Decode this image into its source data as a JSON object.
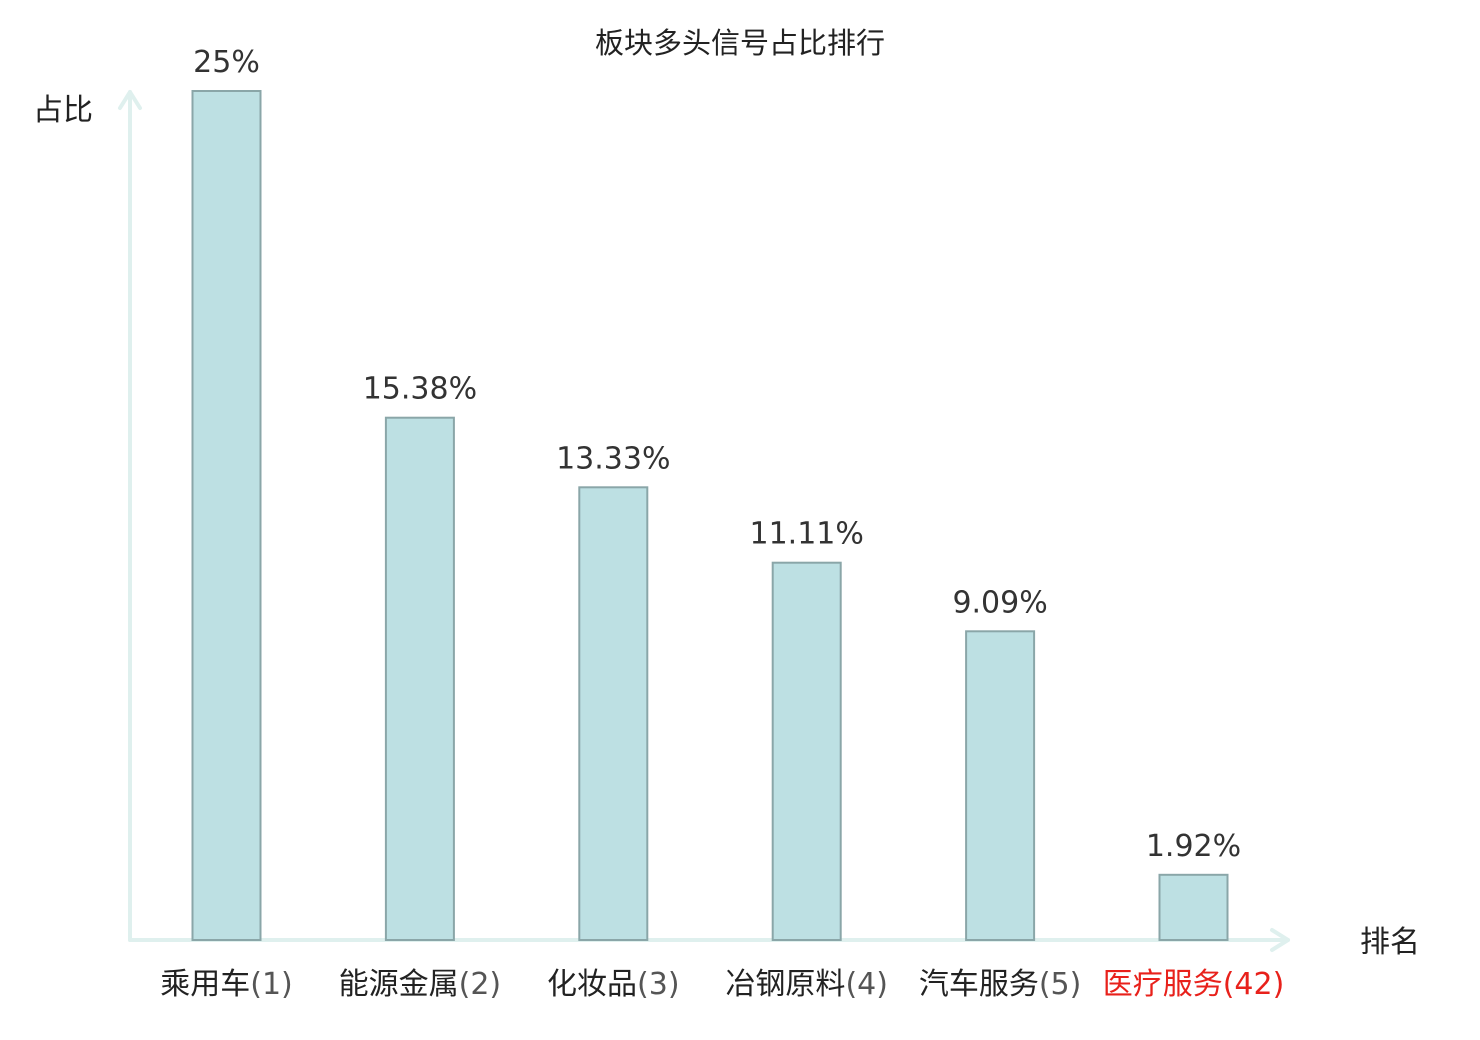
{
  "chart_data": {
    "type": "bar",
    "title": "板块多头信号占比排行",
    "xlabel": "排名",
    "ylabel": "占比",
    "ylim": [
      0,
      25
    ],
    "grid": false,
    "categories": [
      {
        "name": "乘用车",
        "rank": "(1)",
        "highlight": false
      },
      {
        "name": "能源金属",
        "rank": "(2)",
        "highlight": false
      },
      {
        "name": "化妆品",
        "rank": "(3)",
        "highlight": false
      },
      {
        "name": "冶钢原料",
        "rank": "(4)",
        "highlight": false
      },
      {
        "name": "汽车服务",
        "rank": "(5)",
        "highlight": false
      },
      {
        "name": "医疗服务",
        "rank": "(42)",
        "highlight": true
      }
    ],
    "values": [
      25,
      15.38,
      13.33,
      11.11,
      9.09,
      1.92
    ],
    "value_labels": [
      "25%",
      "15.38%",
      "13.33%",
      "11.11%",
      "9.09%",
      "1.92%"
    ],
    "colors": {
      "bar_fill": "#bde0e3",
      "bar_stroke": "#8aa6a8",
      "axis": "#dff0ee",
      "highlight": "#e8211b",
      "category_text": "#222222",
      "rank_text": "#555555"
    }
  }
}
